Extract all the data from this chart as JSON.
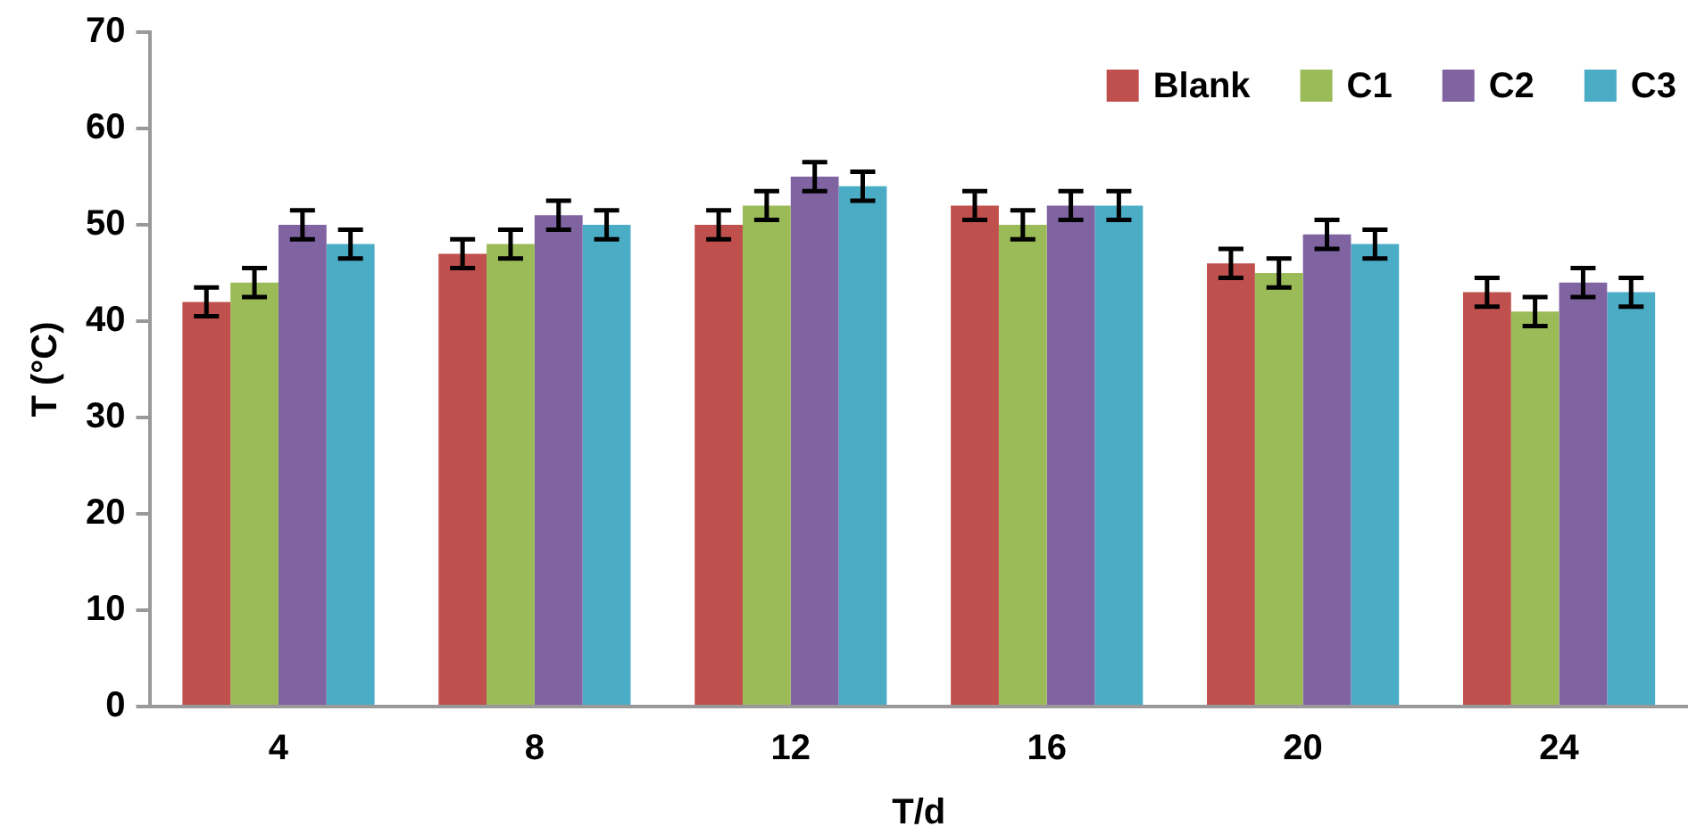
{
  "chart_data": {
    "type": "bar",
    "xlabel": "T/d",
    "ylabel": "T (°C)",
    "categories": [
      "4",
      "8",
      "12",
      "16",
      "20",
      "24"
    ],
    "series": [
      {
        "name": "Blank",
        "color": "#c0504d",
        "values": [
          42,
          47,
          50,
          52,
          46,
          43
        ],
        "errors": [
          1.5,
          1.5,
          1.5,
          1.5,
          1.5,
          1.5
        ]
      },
      {
        "name": "C1",
        "color": "#9bbb59",
        "values": [
          44,
          48,
          52,
          50,
          45,
          41
        ],
        "errors": [
          1.5,
          1.5,
          1.5,
          1.5,
          1.5,
          1.5
        ]
      },
      {
        "name": "C2",
        "color": "#8064a2",
        "values": [
          50,
          51,
          55,
          52,
          49,
          44
        ],
        "errors": [
          1.5,
          1.5,
          1.5,
          1.5,
          1.5,
          1.5
        ]
      },
      {
        "name": "C3",
        "color": "#4bacc6",
        "values": [
          48,
          50,
          54,
          52,
          48,
          43
        ],
        "errors": [
          1.5,
          1.5,
          1.5,
          1.5,
          1.5,
          1.5
        ]
      }
    ],
    "ylim": [
      0,
      70
    ],
    "yticks": [
      0,
      10,
      20,
      30,
      40,
      50,
      60,
      70
    ],
    "grid": false,
    "legend": "top right"
  }
}
